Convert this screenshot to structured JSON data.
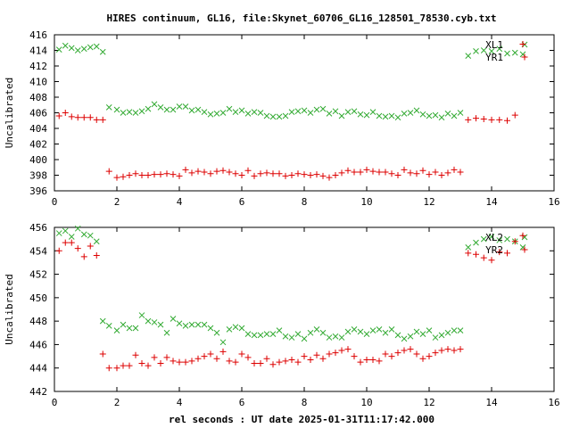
{
  "title": "HIRES continuum, GL16, file:Skynet_60706_GL16_128501_78530.cyb.txt",
  "xlabel": "rel seconds : UT date 2025-01-31T11:17:42.000",
  "colors": {
    "XL": "#33aa33",
    "YR": "#dd0000",
    "frame": "#000000"
  },
  "chart_data": [
    {
      "type": "scatter",
      "ylabel": "Uncalibrated",
      "xlim": [
        0,
        16
      ],
      "ylim": [
        396,
        416
      ],
      "xticks": [
        0,
        2,
        4,
        6,
        8,
        10,
        12,
        14,
        16
      ],
      "yticks": [
        396,
        398,
        400,
        402,
        404,
        406,
        408,
        410,
        412,
        414,
        416
      ],
      "legend_position": "top-right",
      "series": [
        {
          "name": "XL1",
          "marker": "x",
          "color": "#33aa33",
          "x": [
            0.15,
            0.35,
            0.55,
            0.75,
            0.95,
            1.15,
            1.35,
            1.55,
            1.75,
            2.0,
            2.2,
            2.4,
            2.6,
            2.8,
            3.0,
            3.2,
            3.4,
            3.6,
            3.8,
            4.0,
            4.2,
            4.4,
            4.6,
            4.8,
            5.0,
            5.2,
            5.4,
            5.6,
            5.8,
            6.0,
            6.2,
            6.4,
            6.6,
            6.8,
            7.0,
            7.2,
            7.4,
            7.6,
            7.8,
            8.0,
            8.2,
            8.4,
            8.6,
            8.8,
            9.0,
            9.2,
            9.4,
            9.6,
            9.8,
            10.0,
            10.2,
            10.4,
            10.6,
            10.8,
            11.0,
            11.2,
            11.4,
            11.6,
            11.8,
            12.0,
            12.2,
            12.4,
            12.6,
            12.8,
            13.0,
            13.25,
            13.5,
            13.75,
            14.0,
            14.25,
            14.5,
            14.75,
            15.0
          ],
          "y": [
            414.1,
            414.6,
            414.3,
            414.0,
            414.2,
            414.4,
            414.5,
            413.8,
            406.7,
            406.4,
            406.0,
            406.1,
            406.0,
            406.2,
            406.5,
            407.1,
            406.7,
            406.4,
            406.4,
            406.8,
            406.8,
            406.3,
            406.4,
            406.1,
            405.8,
            405.9,
            406.0,
            406.5,
            406.1,
            406.3,
            405.9,
            406.1,
            406.0,
            405.6,
            405.5,
            405.5,
            405.6,
            406.1,
            406.2,
            406.3,
            406.0,
            406.4,
            406.5,
            405.9,
            406.2,
            405.6,
            406.1,
            406.2,
            405.8,
            405.7,
            406.1,
            405.6,
            405.5,
            405.6,
            405.4,
            405.9,
            406.0,
            406.3,
            405.8,
            405.6,
            405.7,
            405.4,
            405.9,
            405.6,
            406.0,
            413.3,
            413.9,
            414.0,
            413.9,
            414.2,
            413.6,
            413.7,
            413.5
          ]
        },
        {
          "name": "YR1",
          "marker": "+",
          "color": "#dd0000",
          "x": [
            0.15,
            0.35,
            0.55,
            0.75,
            0.95,
            1.15,
            1.35,
            1.55,
            1.75,
            2.0,
            2.2,
            2.4,
            2.6,
            2.8,
            3.0,
            3.2,
            3.4,
            3.6,
            3.8,
            4.0,
            4.2,
            4.4,
            4.6,
            4.8,
            5.0,
            5.2,
            5.4,
            5.6,
            5.8,
            6.0,
            6.2,
            6.4,
            6.6,
            6.8,
            7.0,
            7.2,
            7.4,
            7.6,
            7.8,
            8.0,
            8.2,
            8.4,
            8.6,
            8.8,
            9.0,
            9.2,
            9.4,
            9.6,
            9.8,
            10.0,
            10.2,
            10.4,
            10.6,
            10.8,
            11.0,
            11.2,
            11.4,
            11.6,
            11.8,
            12.0,
            12.2,
            12.4,
            12.6,
            12.8,
            13.0,
            13.25,
            13.5,
            13.75,
            14.0,
            14.25,
            14.5,
            14.75,
            15.0
          ],
          "y": [
            405.6,
            406.0,
            405.5,
            405.4,
            405.4,
            405.4,
            405.1,
            405.1,
            398.5,
            397.7,
            397.8,
            398.0,
            398.2,
            398.0,
            398.0,
            398.1,
            398.1,
            398.2,
            398.1,
            397.9,
            398.7,
            398.3,
            398.5,
            398.4,
            398.2,
            398.5,
            398.6,
            398.4,
            398.2,
            398.0,
            398.6,
            397.9,
            398.2,
            398.3,
            398.2,
            398.2,
            397.9,
            398.0,
            398.2,
            398.1,
            398.0,
            398.1,
            397.9,
            397.7,
            398.0,
            398.3,
            398.6,
            398.4,
            398.4,
            398.7,
            398.5,
            398.4,
            398.4,
            398.2,
            398.0,
            398.7,
            398.3,
            398.2,
            398.6,
            398.1,
            398.4,
            398.0,
            398.3,
            398.7,
            398.4,
            405.1,
            405.3,
            405.2,
            405.1,
            405.1,
            405.0,
            405.7,
            414.8
          ]
        }
      ]
    },
    {
      "type": "scatter",
      "ylabel": "Uncalibrated",
      "xlim": [
        0,
        16
      ],
      "ylim": [
        442,
        456
      ],
      "xticks": [
        0,
        2,
        4,
        6,
        8,
        10,
        12,
        14,
        16
      ],
      "yticks": [
        442,
        444,
        446,
        448,
        450,
        452,
        454,
        456
      ],
      "legend_position": "top-right",
      "series": [
        {
          "name": "XL2",
          "marker": "x",
          "color": "#33aa33",
          "x": [
            0.15,
            0.35,
            0.55,
            0.75,
            0.95,
            1.15,
            1.35,
            1.55,
            1.75,
            2.0,
            2.2,
            2.4,
            2.6,
            2.8,
            3.0,
            3.2,
            3.4,
            3.6,
            3.8,
            4.0,
            4.2,
            4.4,
            4.6,
            4.8,
            5.0,
            5.2,
            5.4,
            5.6,
            5.8,
            6.0,
            6.2,
            6.4,
            6.6,
            6.8,
            7.0,
            7.2,
            7.4,
            7.6,
            7.8,
            8.0,
            8.2,
            8.4,
            8.6,
            8.8,
            9.0,
            9.2,
            9.4,
            9.6,
            9.8,
            10.0,
            10.2,
            10.4,
            10.6,
            10.8,
            11.0,
            11.2,
            11.4,
            11.6,
            11.8,
            12.0,
            12.2,
            12.4,
            12.6,
            12.8,
            13.0,
            13.25,
            13.5,
            13.75,
            14.0,
            14.25,
            14.5,
            14.75,
            15.0
          ],
          "y": [
            455.5,
            455.7,
            455.2,
            455.9,
            455.4,
            455.3,
            454.8,
            448.0,
            447.6,
            447.2,
            447.7,
            447.4,
            447.4,
            448.5,
            448.0,
            447.9,
            447.7,
            447.0,
            448.2,
            447.8,
            447.6,
            447.7,
            447.7,
            447.7,
            447.4,
            447.0,
            446.2,
            447.3,
            447.5,
            447.4,
            446.9,
            446.8,
            446.8,
            446.9,
            446.9,
            447.2,
            446.7,
            446.6,
            446.9,
            446.5,
            447.0,
            447.3,
            447.0,
            446.6,
            446.7,
            446.6,
            447.1,
            447.3,
            447.1,
            446.9,
            447.2,
            447.3,
            447.0,
            447.3,
            446.8,
            446.5,
            446.7,
            447.1,
            446.9,
            447.2,
            446.6,
            446.8,
            447.0,
            447.2,
            447.2,
            454.3,
            454.7,
            455.0,
            455.2,
            454.9,
            455.0,
            454.8,
            454.3
          ]
        },
        {
          "name": "YR2",
          "marker": "+",
          "color": "#dd0000",
          "x": [
            0.15,
            0.35,
            0.55,
            0.75,
            0.95,
            1.15,
            1.35,
            1.55,
            1.75,
            2.0,
            2.2,
            2.4,
            2.6,
            2.8,
            3.0,
            3.2,
            3.4,
            3.6,
            3.8,
            4.0,
            4.2,
            4.4,
            4.6,
            4.8,
            5.0,
            5.2,
            5.4,
            5.6,
            5.8,
            6.0,
            6.2,
            6.4,
            6.6,
            6.8,
            7.0,
            7.2,
            7.4,
            7.6,
            7.8,
            8.0,
            8.2,
            8.4,
            8.6,
            8.8,
            9.0,
            9.2,
            9.4,
            9.6,
            9.8,
            10.0,
            10.2,
            10.4,
            10.6,
            10.8,
            11.0,
            11.2,
            11.4,
            11.6,
            11.8,
            12.0,
            12.2,
            12.4,
            12.6,
            12.8,
            13.0,
            13.25,
            13.5,
            13.75,
            14.0,
            14.25,
            14.5,
            14.75,
            15.0
          ],
          "y": [
            454.0,
            454.7,
            454.7,
            454.2,
            453.5,
            454.4,
            453.6,
            445.2,
            444.0,
            444.0,
            444.2,
            444.2,
            445.1,
            444.4,
            444.2,
            444.9,
            444.4,
            444.9,
            444.6,
            444.5,
            444.5,
            444.6,
            444.8,
            445.0,
            445.2,
            444.8,
            445.4,
            444.6,
            444.5,
            445.2,
            444.9,
            444.4,
            444.4,
            444.8,
            444.3,
            444.5,
            444.6,
            444.7,
            444.5,
            445.0,
            444.7,
            445.1,
            444.8,
            445.2,
            445.3,
            445.5,
            445.6,
            445.0,
            444.5,
            444.7,
            444.7,
            444.6,
            445.2,
            445.0,
            445.3,
            445.5,
            445.6,
            445.2,
            444.8,
            445.0,
            445.3,
            445.5,
            445.6,
            445.5,
            445.6,
            453.8,
            453.7,
            453.4,
            453.2,
            453.9,
            453.8,
            454.8,
            455.3
          ]
        }
      ]
    }
  ]
}
